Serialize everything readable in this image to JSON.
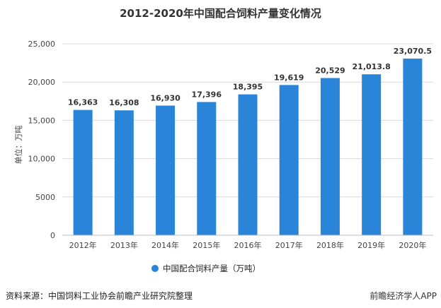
{
  "header": {
    "title": "2012-2020年中国配合饲料产量变化情况"
  },
  "chart_data": {
    "type": "bar",
    "categories": [
      "2012年",
      "2013年",
      "2014年",
      "2015年",
      "2016年",
      "2017年",
      "2018年",
      "2019年",
      "2020年"
    ],
    "values": [
      16363,
      16308,
      16930,
      17396,
      18395,
      19619,
      20529,
      21013.8,
      23070.5
    ],
    "value_labels": [
      "16,363",
      "16,308",
      "16,930",
      "17,396",
      "18,395",
      "19,619",
      "20,529",
      "21,013.8",
      "23,070.5"
    ],
    "ylabel": "单位：万吨",
    "ylim": [
      0,
      25000
    ],
    "yticks": [
      0,
      5000,
      10000,
      15000,
      20000,
      25000
    ],
    "ytick_labels": [
      "0",
      "5000",
      "10,000",
      "15,000",
      "20,000",
      "25,000"
    ],
    "series_name": "中国配合饲料产量（万吨）",
    "bar_color": "#2a84d8",
    "grid": true,
    "legend_position": "bottom"
  },
  "footer": {
    "source": "资料来源：中国饲料工业协会前瞻产业研究院整理",
    "brand": "前瞻经济学人APP"
  }
}
